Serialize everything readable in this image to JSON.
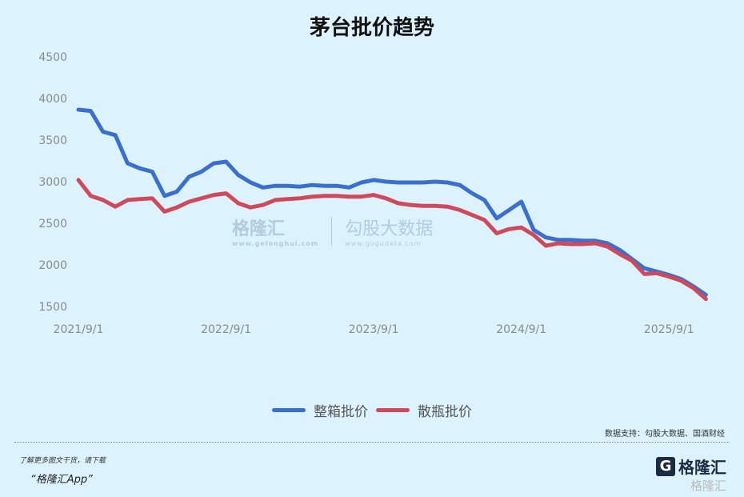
{
  "chart_data": {
    "type": "line",
    "title": "茅台批价趋势",
    "xlabel": "",
    "ylabel": "",
    "ylim": [
      1500,
      4500
    ],
    "yticks": [
      1500,
      2000,
      2500,
      3000,
      3500,
      4000,
      4500
    ],
    "xticks": [
      "2021/9/1",
      "2022/9/1",
      "2023/9/1",
      "2024/9/1",
      "2025/9/1"
    ],
    "grid": false,
    "legend_position": "bottom",
    "x": [
      "2021-09",
      "2021-10",
      "2021-11",
      "2021-12",
      "2022-01",
      "2022-02",
      "2022-03",
      "2022-04",
      "2022-05",
      "2022-06",
      "2022-07",
      "2022-08",
      "2022-09",
      "2022-10",
      "2022-11",
      "2022-12",
      "2023-01",
      "2023-02",
      "2023-03",
      "2023-04",
      "2023-05",
      "2023-06",
      "2023-07",
      "2023-08",
      "2023-09",
      "2023-10",
      "2023-11",
      "2023-12",
      "2024-01",
      "2024-02",
      "2024-03",
      "2024-04",
      "2024-05",
      "2024-06",
      "2024-07",
      "2024-08",
      "2024-09",
      "2024-10",
      "2024-11",
      "2024-12",
      "2025-01",
      "2025-02",
      "2025-03",
      "2025-04",
      "2025-05",
      "2025-06",
      "2025-07",
      "2025-08",
      "2025-09",
      "2025-10",
      "2025-11",
      "2025-12"
    ],
    "series": [
      {
        "name": "整箱批价",
        "color": "#3a6fd0",
        "values": [
          3865,
          3850,
          3600,
          3560,
          3220,
          3160,
          3120,
          2830,
          2880,
          3060,
          3120,
          3220,
          3240,
          3080,
          2990,
          2930,
          2950,
          2950,
          2940,
          2960,
          2950,
          2950,
          2930,
          2990,
          3020,
          3000,
          2990,
          2990,
          2990,
          3000,
          2990,
          2960,
          2860,
          2780,
          2560,
          2660,
          2760,
          2420,
          2330,
          2300,
          2300,
          2290,
          2290,
          2260,
          2180,
          2070,
          1960,
          1920,
          1880,
          1830,
          1740,
          1640
        ]
      },
      {
        "name": "散瓶批价",
        "color": "#d0495a",
        "values": [
          3020,
          2830,
          2780,
          2700,
          2780,
          2790,
          2800,
          2640,
          2690,
          2760,
          2800,
          2840,
          2860,
          2740,
          2690,
          2720,
          2780,
          2790,
          2800,
          2820,
          2830,
          2830,
          2820,
          2820,
          2840,
          2800,
          2740,
          2720,
          2710,
          2710,
          2700,
          2660,
          2600,
          2540,
          2380,
          2430,
          2450,
          2360,
          2230,
          2260,
          2250,
          2250,
          2260,
          2220,
          2130,
          2050,
          1890,
          1900,
          1860,
          1810,
          1720,
          1590
        ]
      }
    ]
  },
  "watermark": {
    "brand1": "格隆汇",
    "brand1_url": "www.gelonghui.com",
    "brand2": "勾股大数据",
    "brand2_url": "www.gogudata.com"
  },
  "source": "数据支持：勾股大数据、国酒财经",
  "footer": {
    "promo_line": "了解更多图文干货，请下载",
    "promo_app": "“格隆汇App”",
    "logo_text": "格隆汇",
    "logo_text2": "格隆汇"
  }
}
